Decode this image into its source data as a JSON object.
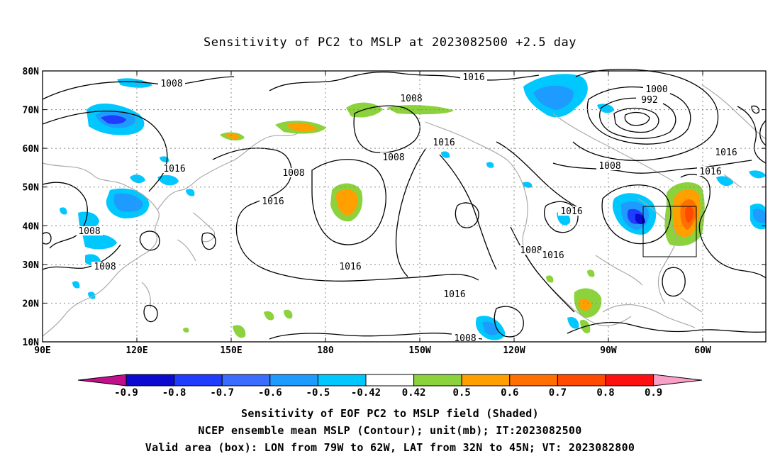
{
  "title": "Sensitivity of PC2 to MSLP at 2023082500 +2.5 day",
  "lat_labels": [
    "80N",
    "70N",
    "60N",
    "50N",
    "40N",
    "30N",
    "20N",
    "10N"
  ],
  "lon_labels": [
    "90E",
    "120E",
    "150E",
    "180",
    "150W",
    "120W",
    "90W",
    "60W"
  ],
  "contour_labels": [
    {
      "text": "1008"
    },
    {
      "text": "1016"
    },
    {
      "text": "1008"
    },
    {
      "text": "1000"
    },
    {
      "text": "992"
    },
    {
      "text": "1016"
    },
    {
      "text": "1008"
    },
    {
      "text": "1016"
    },
    {
      "text": "1016"
    },
    {
      "text": "1008"
    },
    {
      "text": "1016"
    },
    {
      "text": "1008"
    },
    {
      "text": "1016"
    },
    {
      "text": "1016"
    },
    {
      "text": "1008"
    },
    {
      "text": "1008"
    },
    {
      "text": "1016"
    },
    {
      "text": "1016"
    },
    {
      "text": "1008"
    },
    {
      "text": "1016"
    },
    {
      "text": "1008"
    }
  ],
  "colorbar": {
    "labels": [
      "-0.9",
      "-0.8",
      "-0.7",
      "-0.6",
      "-0.5",
      "-0.42",
      "0.42",
      "0.5",
      "0.6",
      "0.7",
      "0.8",
      "0.9"
    ],
    "colors": [
      "#0a0ad0",
      "#1f3cff",
      "#3a6cff",
      "#1e9bff",
      "#00c8ff",
      "#ffffff",
      "#8cd23c",
      "#ffa000",
      "#ff7000",
      "#ff4a00",
      "#ff1010"
    ],
    "low_color": "#c0108c",
    "high_color": "#f8a0c8"
  },
  "valid_box": {
    "lon_from": "79W",
    "lon_to": "62W",
    "lat_from": "32N",
    "lat_to": "45N"
  },
  "captions": [
    "Sensitivity of EOF PC2 to MSLP field (Shaded)",
    "NCEP ensemble mean MSLP (Contour); unit(mb); IT:2023082500",
    "Valid area (box): LON from 79W to 62W, LAT from 32N to 45N; VT: 2023082800"
  ]
}
